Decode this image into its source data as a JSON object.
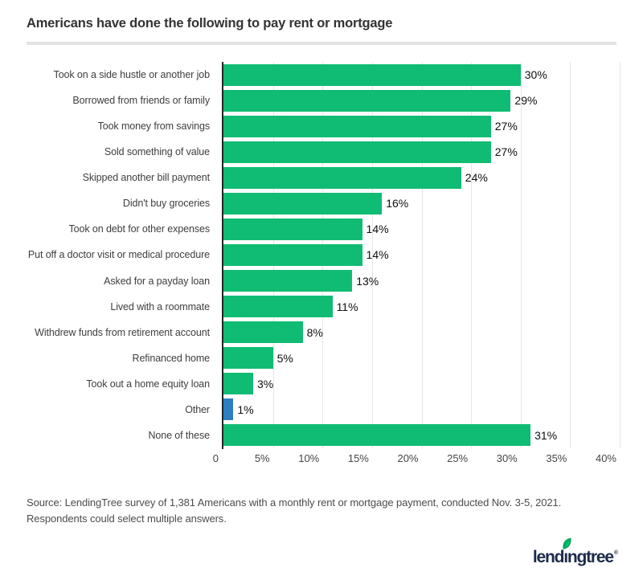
{
  "page": {
    "title": "Americans have done the following to pay rent or mortgage",
    "source_line1": "Source: LendingTree survey of 1,381 Americans with a monthly rent or mortgage payment, conducted Nov. 3-5, 2021.",
    "source_line2": "Respondents could select multiple answers.",
    "logo": {
      "full_name": "lendingtree",
      "text_pre": "lend",
      "text_i": "ı",
      "text_post": "ngtree",
      "trademark": "®",
      "leaf_icon": "leaf-icon",
      "navy": "#1c2b4a",
      "leaf_green": "#00c572"
    }
  },
  "colors": {
    "bar_green": "#10bc73",
    "bar_blue": "#2d7fc1",
    "axis": "#262626",
    "gridline": "#e7e7e7",
    "title_text": "#333333",
    "label_text": "#3e3e3e",
    "value_text": "#0f0f0f",
    "tick_text": "#454545",
    "source_text": "#4c4c4c",
    "divider": "#e3e3e3"
  },
  "chart_data": {
    "type": "bar",
    "orientation": "horizontal",
    "title": "Americans have done the following to pay rent or mortgage",
    "xlabel": "",
    "ylabel": "",
    "xlim": [
      0,
      40
    ],
    "grid": true,
    "legend": false,
    "categories": [
      "Took on a side hustle or another job",
      "Borrowed from friends or family",
      "Took money from savings",
      "Sold something of value",
      "Skipped another bill payment",
      "Didn't buy groceries",
      "Took on debt for other expenses",
      "Put off a doctor visit or medical procedure",
      "Asked for a payday loan",
      "Lived with a roommate",
      "Withdrew funds from retirement account",
      "Refinanced home",
      "Took out a home equity loan",
      "Other",
      "None of these"
    ],
    "values": [
      30,
      29,
      27,
      27,
      24,
      16,
      14,
      14,
      13,
      11,
      8,
      5,
      3,
      1,
      31
    ],
    "value_labels": [
      "30%",
      "29%",
      "27%",
      "27%",
      "24%",
      "16%",
      "14%",
      "14%",
      "13%",
      "11%",
      "8%",
      "5%",
      "3%",
      "1%",
      "31%"
    ],
    "bar_colors": [
      "#10bc73",
      "#10bc73",
      "#10bc73",
      "#10bc73",
      "#10bc73",
      "#10bc73",
      "#10bc73",
      "#10bc73",
      "#10bc73",
      "#10bc73",
      "#10bc73",
      "#10bc73",
      "#10bc73",
      "#2d7fc1",
      "#10bc73"
    ],
    "xticks": [
      {
        "label": "0",
        "value": 0
      },
      {
        "label": "5%",
        "value": 5
      },
      {
        "label": "10%",
        "value": 10
      },
      {
        "label": "15%",
        "value": 15
      },
      {
        "label": "20%",
        "value": 20
      },
      {
        "label": "25%",
        "value": 25
      },
      {
        "label": "30%",
        "value": 30
      },
      {
        "label": "35%",
        "value": 35
      },
      {
        "label": "40%",
        "value": 40
      }
    ]
  }
}
